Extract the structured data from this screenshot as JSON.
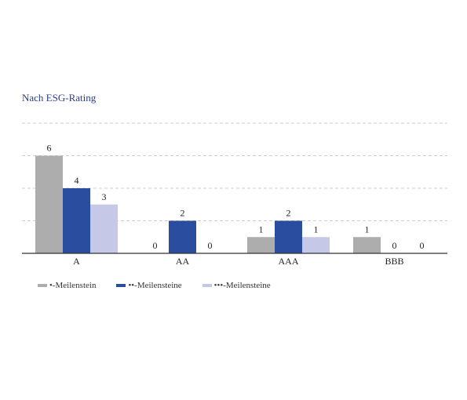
{
  "chart_data": {
    "type": "bar",
    "title": "Nach ESG-Rating",
    "categories": [
      "A",
      "AA",
      "AAA",
      "BBB"
    ],
    "series": [
      {
        "name": "•-Meilenstein",
        "values": [
          6,
          0,
          1,
          1
        ],
        "color": "#adadad"
      },
      {
        "name": "••-Meilensteine",
        "values": [
          4,
          2,
          2,
          0
        ],
        "color": "#2a4da0"
      },
      {
        "name": "•••-Meilensteine",
        "values": [
          3,
          0,
          1,
          0
        ],
        "color": "#c5c8e6"
      }
    ],
    "ylim": [
      0,
      8
    ],
    "grid": true,
    "legend_position": "bottom-left",
    "data_labels": true
  }
}
